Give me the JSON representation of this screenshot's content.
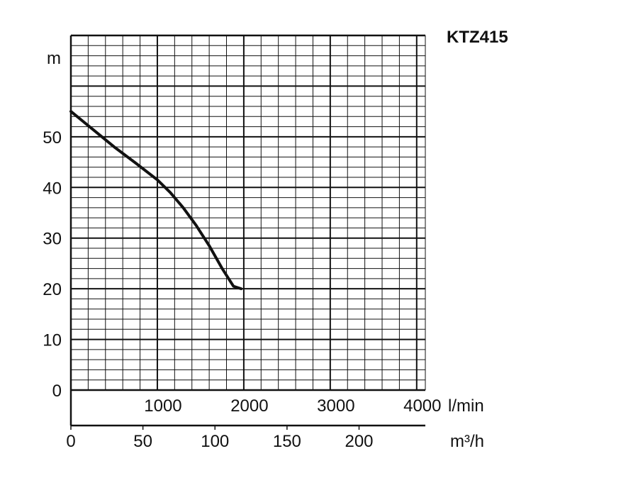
{
  "chart_data": {
    "type": "line",
    "title": "KTZ415",
    "ylabel": "m",
    "xlabel": "l/min",
    "xlabel_secondary": "m³/h",
    "xlim": [
      0,
      4100
    ],
    "ylim": [
      0,
      70
    ],
    "y_ticks": [
      0,
      10,
      20,
      30,
      40,
      50
    ],
    "x_ticks": [
      1000,
      2000,
      3000,
      4000
    ],
    "x_secondary_ticks": [
      0,
      50,
      100,
      150,
      200
    ],
    "x_secondary_lim": [
      0,
      246
    ],
    "grid": true,
    "series": [
      {
        "x": [
          0,
          250,
          500,
          750,
          1000,
          1150,
          1300,
          1450,
          1600,
          1750,
          1880,
          1970
        ],
        "y": [
          55,
          51.5,
          48,
          44.8,
          41.5,
          39,
          36,
          32.5,
          28.5,
          24,
          20.5,
          20
        ],
        "color": "#111111"
      }
    ]
  }
}
